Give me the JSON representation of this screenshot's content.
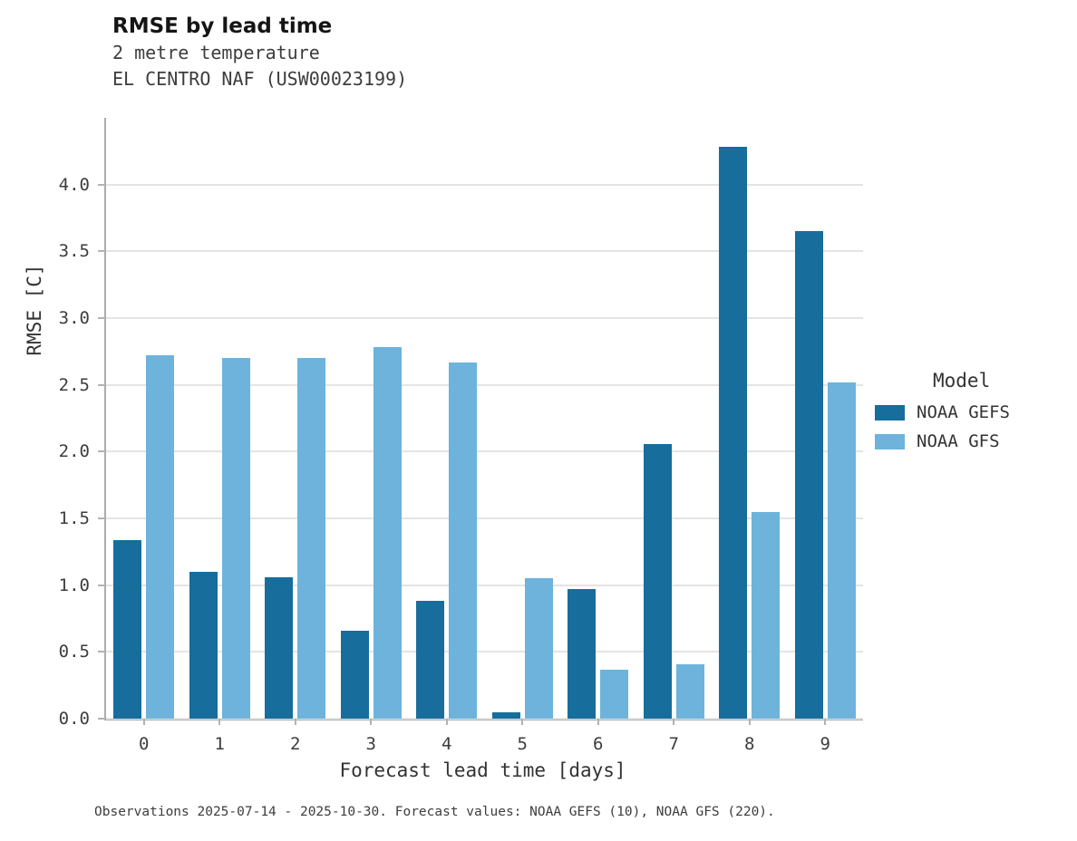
{
  "header": {
    "title": "RMSE by lead time",
    "subtitle1": "2 metre temperature",
    "subtitle2": "EL CENTRO NAF (USW00023199)"
  },
  "chart_data": {
    "type": "bar",
    "title": "RMSE by lead time",
    "subtitle": "2 metre temperature — EL CENTRO NAF (USW00023199)",
    "categories": [
      "0",
      "1",
      "2",
      "3",
      "4",
      "5",
      "6",
      "7",
      "8",
      "9"
    ],
    "series": [
      {
        "name": "NOAA GEFS",
        "color": "#176d9c",
        "values": [
          1.34,
          1.1,
          1.06,
          0.66,
          0.88,
          0.05,
          0.97,
          2.06,
          4.28,
          3.65
        ]
      },
      {
        "name": "NOAA GFS",
        "color": "#6db3dc",
        "values": [
          2.72,
          2.7,
          2.7,
          2.78,
          2.67,
          1.05,
          0.37,
          0.41,
          1.55,
          2.52
        ]
      }
    ],
    "xlabel": "Forecast lead time [days]",
    "ylabel": "RMSE [C]",
    "ylim": [
      0,
      4.5
    ],
    "yticks": [
      0.0,
      0.5,
      1.0,
      1.5,
      2.0,
      2.5,
      3.0,
      3.5,
      4.0
    ],
    "grid": true,
    "legend_title": "Model",
    "legend_position": "right"
  },
  "footer": {
    "caption": "Observations 2025-07-14 - 2025-10-30. Forecast values: NOAA GEFS (10), NOAA GFS (220)."
  }
}
